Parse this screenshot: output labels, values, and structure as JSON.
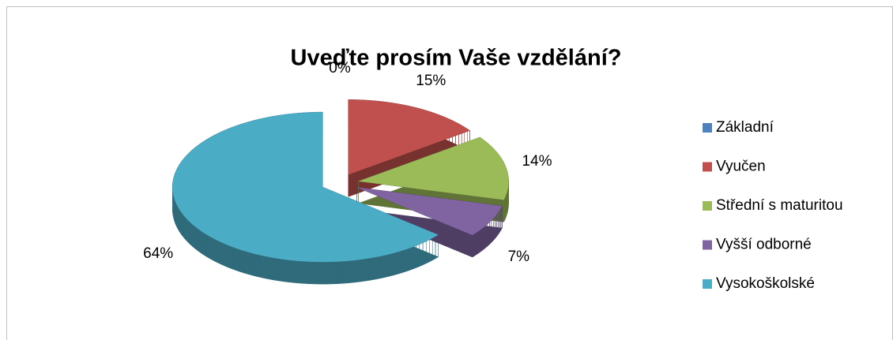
{
  "chart_data": {
    "type": "pie",
    "title": "Uveďte prosím Vaše vzdělání?",
    "categories": [
      "Základní",
      "Vyučen",
      "Střední s maturitou",
      "Vyšší odborné",
      "Vysokoškolské"
    ],
    "values": [
      0,
      15,
      14,
      7,
      64
    ],
    "value_labels": [
      "0%",
      "15%",
      "14%",
      "7%",
      "64%"
    ],
    "colors": [
      "#4f81bd",
      "#c0504d",
      "#9bbb59",
      "#8064a2",
      "#4bacc6"
    ],
    "legend": "right"
  }
}
